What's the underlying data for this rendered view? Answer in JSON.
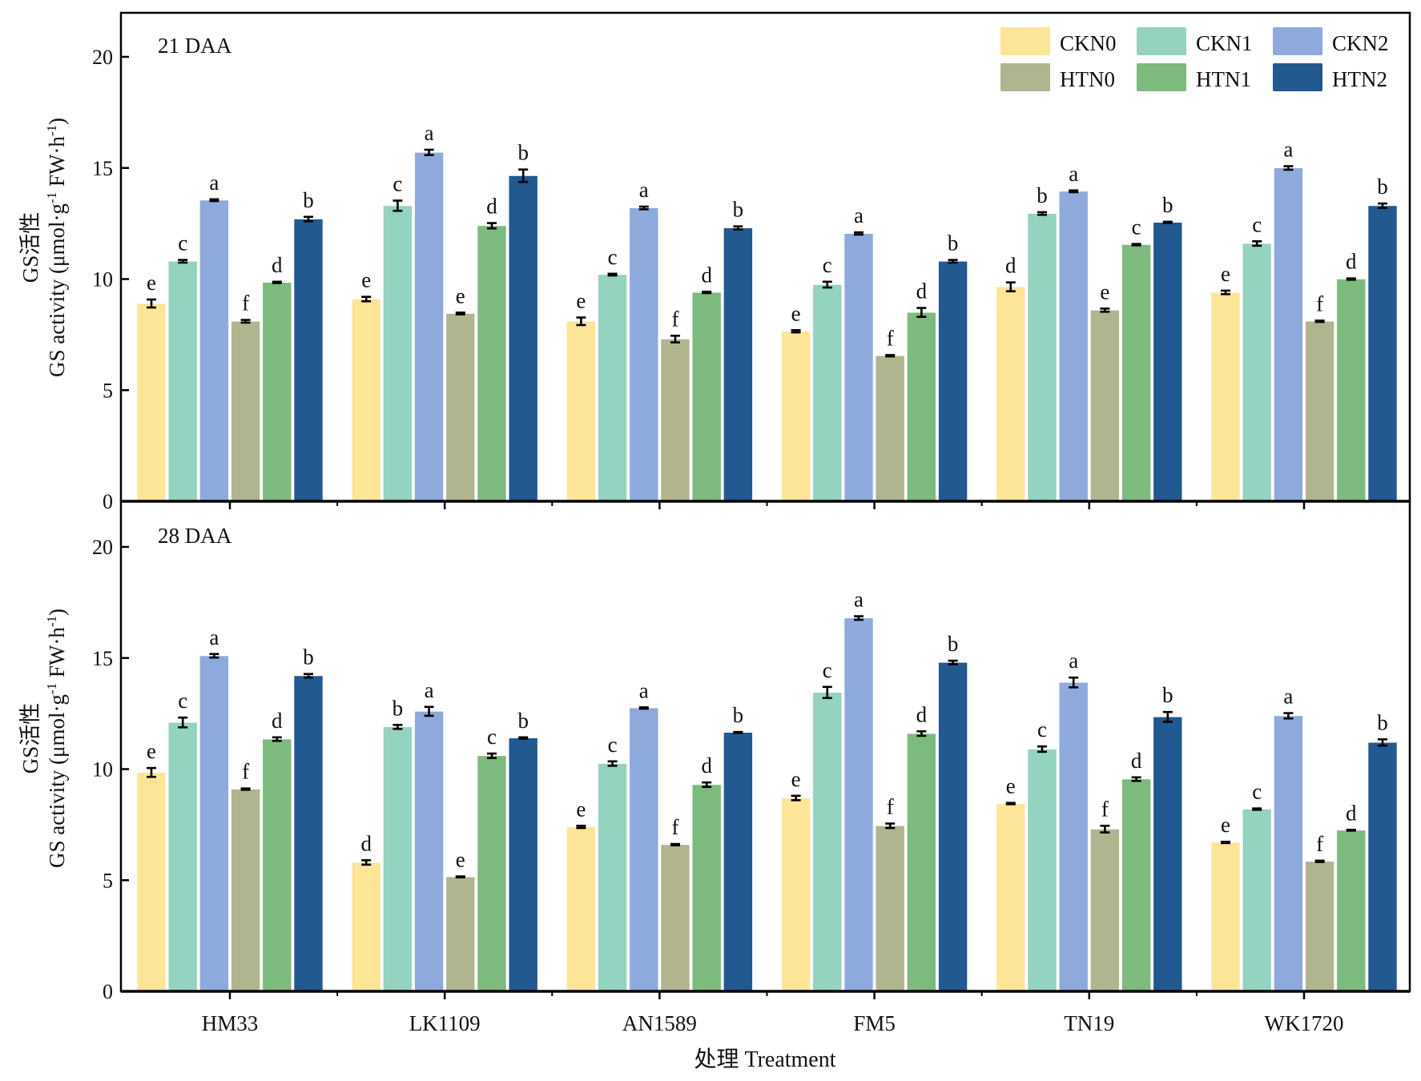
{
  "chart_data": {
    "type": "bar",
    "xlabel": "处理 Treatment",
    "ylabel_cn": "GS活性",
    "ylabel_en": "GS activity (μmol·g",
    "ylabel_unit_tail": " FW·h",
    "ylim": [
      0,
      22
    ],
    "yticks": [
      0,
      5,
      10,
      15,
      20
    ],
    "grid": false,
    "legend_position": "top-right",
    "categories": [
      "HM33",
      "LK1109",
      "AN1589",
      "FM5",
      "TN19",
      "WK1720"
    ],
    "series_names": [
      "CKN0",
      "CKN1",
      "CKN2",
      "HTN0",
      "HTN1",
      "HTN2"
    ],
    "colors": [
      "#fde598",
      "#93d3c0",
      "#8eaadc",
      "#b0b58f",
      "#7dba7e",
      "#215990"
    ],
    "legend_order": [
      "CKN0",
      "CKN1",
      "CKN2",
      "HTN0",
      "HTN1",
      "HTN2"
    ],
    "panels": [
      {
        "title": "21 DAA",
        "series": [
          {
            "name": "CKN0",
            "values": [
              8.9,
              9.1,
              8.1,
              7.65,
              9.65,
              9.4
            ],
            "errors": [
              0.18,
              0.1,
              0.17,
              0.05,
              0.2,
              0.08
            ],
            "letters": [
              "e",
              "e",
              "e",
              "e",
              "d",
              "e"
            ]
          },
          {
            "name": "CKN1",
            "values": [
              10.8,
              13.3,
              10.2,
              9.75,
              12.95,
              11.6
            ],
            "errors": [
              0.06,
              0.23,
              0.04,
              0.13,
              0.06,
              0.1
            ],
            "letters": [
              "c",
              "c",
              "c",
              "c",
              "b",
              "c"
            ]
          },
          {
            "name": "CKN2",
            "values": [
              13.55,
              15.7,
              13.2,
              12.05,
              13.95,
              15.0
            ],
            "errors": [
              0.04,
              0.12,
              0.06,
              0.05,
              0.04,
              0.08
            ],
            "letters": [
              "a",
              "a",
              "a",
              "a",
              "a",
              "a"
            ]
          },
          {
            "name": "HTN0",
            "values": [
              8.1,
              8.45,
              7.3,
              6.55,
              8.6,
              8.1
            ],
            "errors": [
              0.06,
              0.04,
              0.15,
              0.03,
              0.07,
              0.03
            ],
            "letters": [
              "f",
              "e",
              "f",
              "f",
              "e",
              "f"
            ]
          },
          {
            "name": "HTN1",
            "values": [
              9.85,
              12.4,
              9.4,
              8.5,
              11.55,
              10.0
            ],
            "errors": [
              0.03,
              0.12,
              0.03,
              0.2,
              0.03,
              0.03
            ],
            "letters": [
              "d",
              "d",
              "d",
              "d",
              "c",
              "d"
            ]
          },
          {
            "name": "HTN2",
            "values": [
              12.7,
              14.65,
              12.3,
              10.8,
              12.55,
              13.3
            ],
            "errors": [
              0.1,
              0.28,
              0.07,
              0.06,
              0.03,
              0.1
            ],
            "letters": [
              "b",
              "b",
              "b",
              "b",
              "b",
              "b"
            ]
          }
        ]
      },
      {
        "title": "28 DAA",
        "series": [
          {
            "name": "CKN0",
            "values": [
              9.85,
              5.8,
              7.4,
              8.7,
              8.45,
              6.7
            ],
            "errors": [
              0.2,
              0.1,
              0.05,
              0.1,
              0.03,
              0.03
            ],
            "letters": [
              "e",
              "d",
              "e",
              "e",
              "e",
              "e"
            ]
          },
          {
            "name": "CKN1",
            "values": [
              12.1,
              11.9,
              10.25,
              13.45,
              10.9,
              8.2
            ],
            "errors": [
              0.22,
              0.09,
              0.1,
              0.25,
              0.12,
              0.03
            ],
            "letters": [
              "c",
              "b",
              "c",
              "c",
              "c",
              "c"
            ]
          },
          {
            "name": "CKN2",
            "values": [
              15.1,
              12.6,
              12.75,
              16.8,
              13.9,
              12.4
            ],
            "errors": [
              0.08,
              0.2,
              0.03,
              0.08,
              0.22,
              0.12
            ],
            "letters": [
              "a",
              "a",
              "a",
              "a",
              "a",
              "a"
            ]
          },
          {
            "name": "HTN0",
            "values": [
              9.1,
              5.15,
              6.6,
              7.45,
              7.3,
              5.85
            ],
            "errors": [
              0.03,
              0.02,
              0.03,
              0.1,
              0.15,
              0.03
            ],
            "letters": [
              "f",
              "e",
              "f",
              "f",
              "f",
              "f"
            ]
          },
          {
            "name": "HTN1",
            "values": [
              11.35,
              10.6,
              9.3,
              11.6,
              9.55,
              7.25
            ],
            "errors": [
              0.08,
              0.1,
              0.1,
              0.1,
              0.08,
              0.02
            ],
            "letters": [
              "d",
              "c",
              "d",
              "d",
              "d",
              "d"
            ]
          },
          {
            "name": "HTN2",
            "values": [
              14.2,
              11.4,
              11.65,
              14.8,
              12.35,
              11.2
            ],
            "errors": [
              0.08,
              0.03,
              0.02,
              0.08,
              0.22,
              0.14
            ],
            "letters": [
              "b",
              "b",
              "b",
              "b",
              "b",
              "b"
            ]
          }
        ]
      }
    ]
  }
}
